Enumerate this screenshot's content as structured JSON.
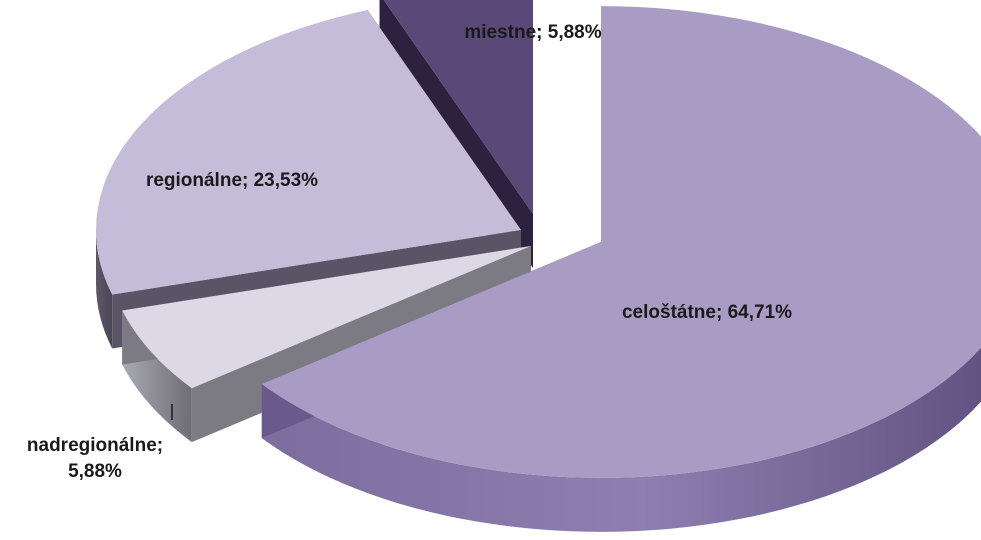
{
  "chart_data": {
    "type": "pie",
    "title": "",
    "categories": [
      "celoštátne",
      "nadregionálne",
      "regionálne",
      "miestne"
    ],
    "values": [
      64.71,
      5.88,
      23.53,
      5.88
    ],
    "labels": [
      "celoštátne; 64,71%",
      "nadregionálne;",
      "regionálne; 23,53%",
      "miestne; 5,88%"
    ],
    "label_second_line": "5,88%",
    "colors": {
      "top": [
        "#a99cc4",
        "#dcd8e6",
        "#c4bcd8",
        "#5a4878"
      ],
      "side": [
        "#6a5a8c",
        "#7c7a82",
        "#5a5566",
        "#2c2240"
      ]
    },
    "style": "3d-exploded",
    "legend": "none"
  }
}
